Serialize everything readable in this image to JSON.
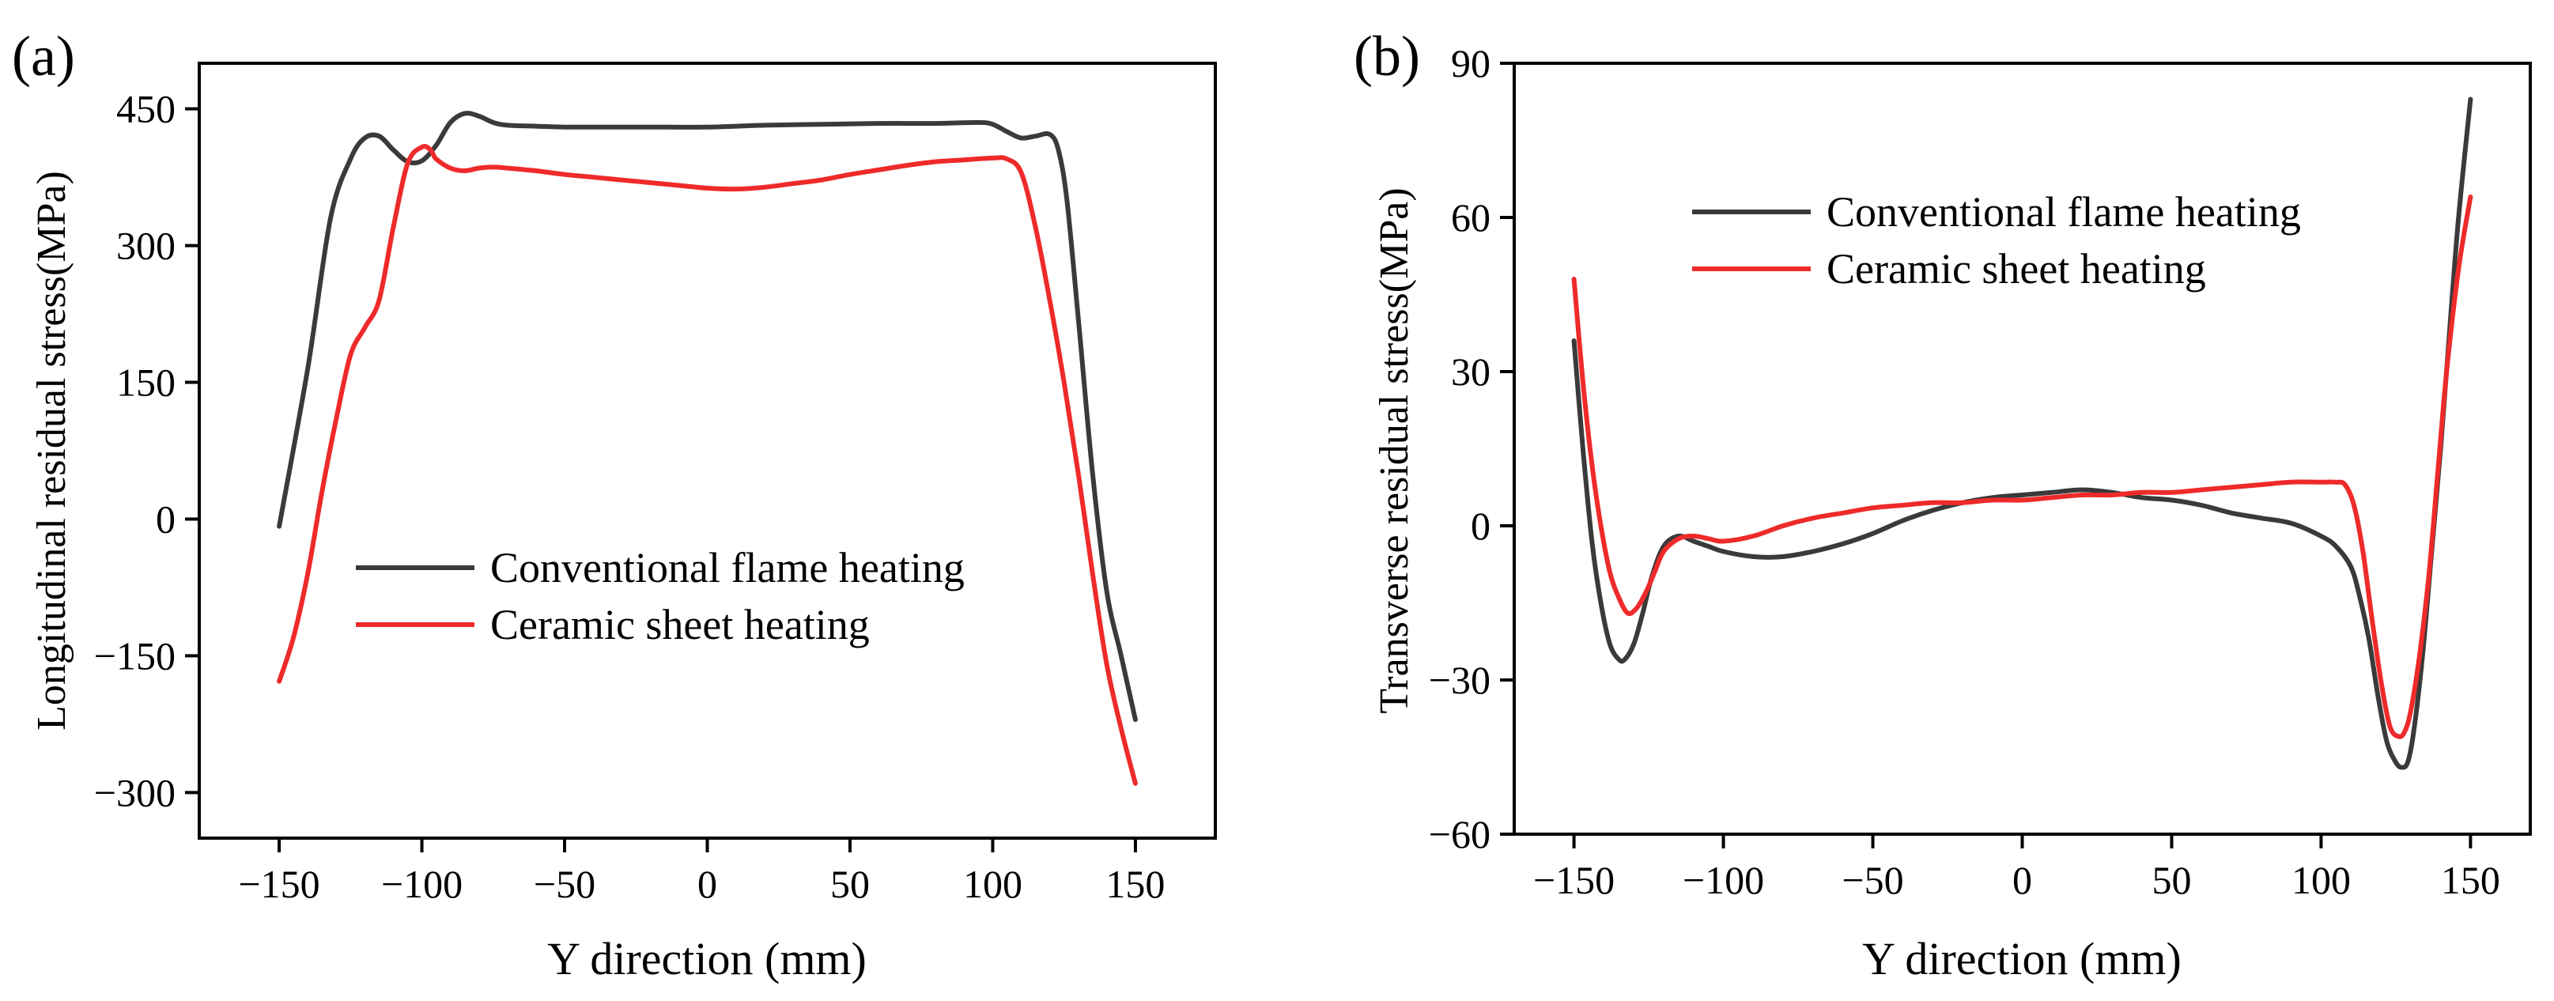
{
  "chart_data": [
    {
      "type": "line",
      "panel_label": "(a)",
      "xlabel": "Y direction (mm)",
      "ylabel": "Longitudinal residual stress(MPa)",
      "xlim": [
        -178,
        178
      ],
      "ylim": [
        -350,
        500
      ],
      "xticks": [
        -150,
        -100,
        -50,
        0,
        50,
        100,
        150
      ],
      "yticks": [
        -300,
        -150,
        0,
        150,
        300,
        450
      ],
      "xtick_labels": [
        "−150",
        "−100",
        "−50",
        "0",
        "50",
        "100",
        "150"
      ],
      "ytick_labels": [
        "−300",
        "−150",
        "0",
        "150",
        "300",
        "450"
      ],
      "legend": {
        "position": "lower-center"
      },
      "series": [
        {
          "name": "Conventional flame heating",
          "color": "#3a3a3a",
          "x": [
            -150,
            -140,
            -132,
            -125,
            -120,
            -115,
            -110,
            -105,
            -100,
            -95,
            -90,
            -85,
            -80,
            -75,
            -70,
            -60,
            -50,
            -40,
            -20,
            0,
            20,
            40,
            60,
            80,
            95,
            100,
            105,
            110,
            115,
            120,
            123,
            126,
            130,
            135,
            140,
            145,
            150
          ],
          "y": [
            -8,
            165,
            330,
            395,
            418,
            420,
            405,
            392,
            393,
            410,
            435,
            445,
            442,
            435,
            432,
            431,
            430,
            430,
            430,
            430,
            432,
            433,
            434,
            434,
            435,
            433,
            425,
            418,
            420,
            422,
            405,
            350,
            220,
            50,
            -80,
            -150,
            -220
          ]
        },
        {
          "name": "Ceramic sheet heating",
          "color": "#ee2a2a",
          "x": [
            -150,
            -145,
            -140,
            -135,
            -130,
            -125,
            -120,
            -115,
            -110,
            -105,
            -100,
            -97,
            -95,
            -90,
            -85,
            -80,
            -75,
            -70,
            -60,
            -50,
            -40,
            -30,
            -20,
            -10,
            0,
            10,
            20,
            30,
            40,
            50,
            60,
            70,
            80,
            90,
            100,
            105,
            110,
            115,
            120,
            125,
            130,
            135,
            140,
            145,
            150
          ],
          "y": [
            -178,
            -130,
            -60,
            30,
            110,
            180,
            210,
            240,
            320,
            390,
            408,
            405,
            395,
            385,
            382,
            385,
            386,
            385,
            382,
            378,
            375,
            372,
            369,
            366,
            363,
            362,
            364,
            368,
            372,
            378,
            383,
            388,
            392,
            394,
            396,
            395,
            380,
            320,
            240,
            150,
            50,
            -60,
            -160,
            -230,
            -290
          ]
        }
      ]
    },
    {
      "type": "line",
      "panel_label": "(b)",
      "xlabel": "Y direction (mm)",
      "ylabel": "Transverse residual stress(MPa)",
      "xlim": [
        -170,
        170
      ],
      "ylim": [
        -60,
        90
      ],
      "xticks": [
        -150,
        -100,
        -50,
        0,
        50,
        100,
        150
      ],
      "yticks": [
        -60,
        -30,
        0,
        30,
        60,
        90
      ],
      "xtick_labels": [
        "−150",
        "−100",
        "−50",
        "0",
        "50",
        "100",
        "150"
      ],
      "ytick_labels": [
        "−60",
        "−30",
        "0",
        "30",
        "60",
        "90"
      ],
      "legend": {
        "position": "top-center"
      },
      "series": [
        {
          "name": "Conventional flame heating",
          "color": "#3a3a3a",
          "x": [
            -150,
            -147,
            -144,
            -141,
            -138,
            -135,
            -133,
            -130,
            -127,
            -124,
            -120,
            -115,
            -110,
            -105,
            -100,
            -90,
            -80,
            -70,
            -60,
            -50,
            -40,
            -30,
            -20,
            -10,
            0,
            10,
            20,
            30,
            40,
            50,
            60,
            70,
            80,
            90,
            100,
            105,
            110,
            113,
            116,
            119,
            122,
            125,
            127,
            129,
            131,
            134,
            137,
            140,
            143,
            146,
            150
          ],
          "y": [
            36,
            15,
            -3,
            -15,
            -23,
            -26,
            -26,
            -23,
            -17,
            -10,
            -4,
            -2,
            -3,
            -4,
            -5,
            -6,
            -6,
            -5,
            -3.5,
            -1.5,
            1,
            3,
            4.5,
            5.5,
            6,
            6.5,
            7,
            6.5,
            5.5,
            5,
            4,
            2.5,
            1.5,
            0.5,
            -2,
            -4,
            -8,
            -14,
            -22,
            -33,
            -42,
            -46,
            -47,
            -46,
            -40,
            -25,
            -5,
            15,
            38,
            60,
            83
          ]
        },
        {
          "name": "Ceramic sheet heating",
          "color": "#ee2a2a",
          "x": [
            -150,
            -147,
            -144,
            -141,
            -138,
            -135,
            -132,
            -129,
            -126,
            -123,
            -120,
            -115,
            -110,
            -105,
            -100,
            -90,
            -80,
            -70,
            -60,
            -50,
            -40,
            -30,
            -20,
            -10,
            0,
            10,
            20,
            30,
            40,
            50,
            60,
            70,
            80,
            90,
            100,
            105,
            108,
            111,
            114,
            117,
            120,
            123,
            126,
            128,
            130,
            133,
            136,
            139,
            142,
            146,
            150
          ],
          "y": [
            48,
            28,
            12,
            0,
            -9,
            -14,
            -17,
            -16,
            -13,
            -9,
            -5,
            -2.5,
            -2,
            -2.5,
            -3,
            -2,
            0,
            1.5,
            2.5,
            3.5,
            4,
            4.5,
            4.5,
            5,
            5,
            5.5,
            6,
            6,
            6.5,
            6.5,
            7,
            7.5,
            8,
            8.5,
            8.5,
            8.5,
            8,
            4,
            -5,
            -18,
            -30,
            -39,
            -41,
            -40,
            -36,
            -25,
            -10,
            10,
            30,
            50,
            64
          ]
        }
      ]
    }
  ]
}
